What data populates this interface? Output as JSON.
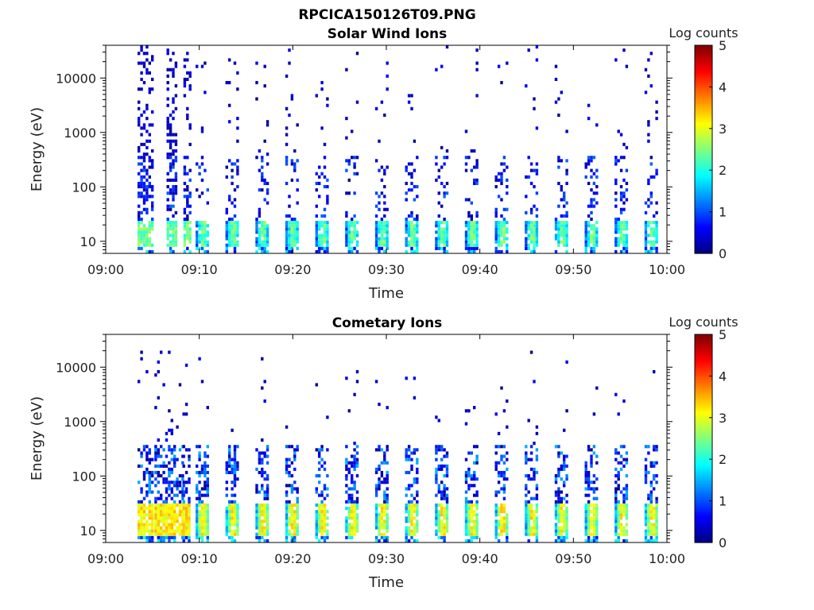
{
  "figure": {
    "title": "RPCICA150126T09.PNG"
  },
  "chart_data": [
    {
      "type": "heatmap",
      "title": "Solar Wind Ions",
      "xlabel": "Time",
      "ylabel": "Energy (eV)",
      "y_scale": "log",
      "ylim": [
        6,
        40000
      ],
      "x_range": [
        "09:00",
        "10:00"
      ],
      "x_ticks": [
        "09:00",
        "09:10",
        "09:20",
        "09:30",
        "09:40",
        "09:50",
        "10:00"
      ],
      "y_ticks": [
        "10",
        "100",
        "1000",
        "10000"
      ],
      "colorbar": {
        "label": "Log counts",
        "range": [
          0,
          5
        ],
        "ticks": [
          "0",
          "1",
          "2",
          "3",
          "4",
          "5"
        ],
        "colormap": "jet"
      },
      "data_start_min": 3.4,
      "early_scans": [
        {
          "start_min": 3.4,
          "end_min": 5.0
        },
        {
          "start_min": 6.5,
          "end_min": 7.5
        },
        {
          "start_min": 8.3,
          "end_min": 9.0
        }
      ],
      "scan_period_min": 3.2,
      "scan_start_min": 9.6,
      "scan_end_min": 60,
      "peak_energy_ev": [
        9,
        20
      ],
      "peak_log_counts": 2.5,
      "max_energy_ev": 40000
    },
    {
      "type": "heatmap",
      "title": "Cometary Ions",
      "xlabel": "Time",
      "ylabel": "Energy (eV)",
      "y_scale": "log",
      "ylim": [
        6,
        40000
      ],
      "x_range": [
        "09:00",
        "10:00"
      ],
      "x_ticks": [
        "09:00",
        "09:10",
        "09:20",
        "09:30",
        "09:40",
        "09:50",
        "10:00"
      ],
      "y_ticks": [
        "10",
        "100",
        "1000",
        "10000"
      ],
      "colorbar": {
        "label": "Log counts",
        "range": [
          0,
          5
        ],
        "ticks": [
          "0",
          "1",
          "2",
          "3",
          "4",
          "5"
        ],
        "colormap": "jet"
      },
      "data_start_min": 3.4,
      "early_scans": [
        {
          "start_min": 3.4,
          "end_min": 5.0
        },
        {
          "start_min": 5.2,
          "end_min": 8.2
        },
        {
          "start_min": 8.2,
          "end_min": 9.0
        }
      ],
      "scan_period_min": 3.2,
      "scan_start_min": 9.6,
      "scan_end_min": 60,
      "peak_energy_ev": [
        9,
        25
      ],
      "peak_log_counts": 3.2,
      "max_energy_ev": 20000
    }
  ]
}
